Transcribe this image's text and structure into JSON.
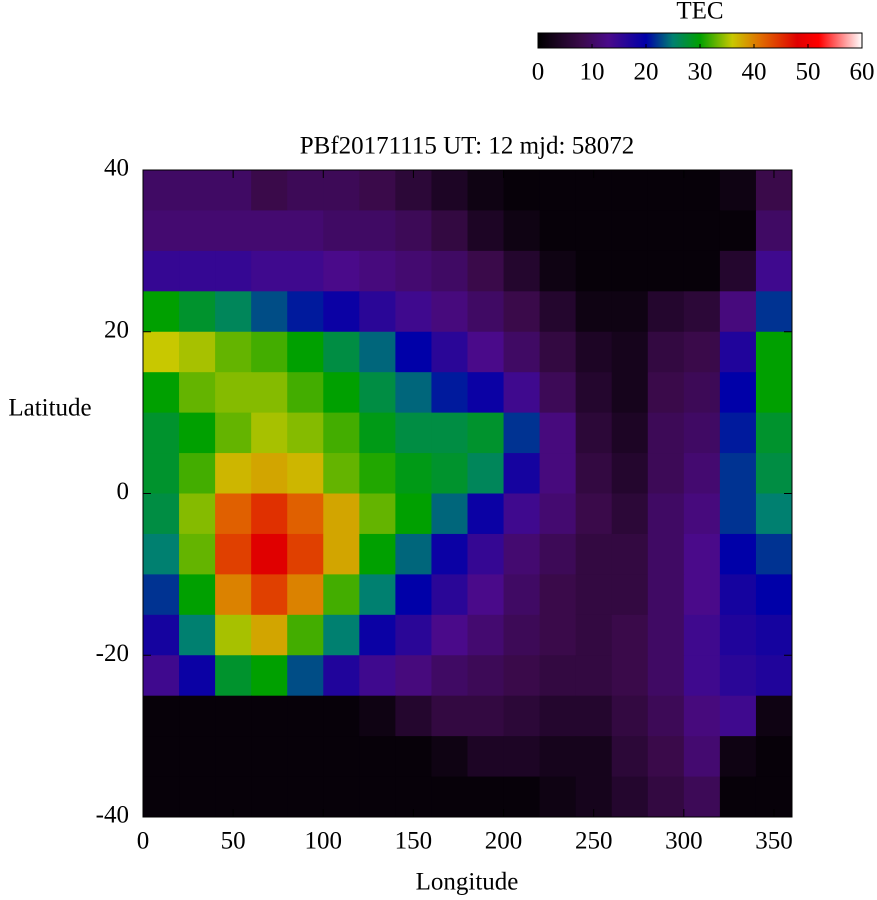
{
  "chart_data": {
    "type": "heatmap",
    "title": "PBf20171115  UT: 12  mjd: 58072",
    "xlabel": "Longitude",
    "ylabel": "Latitude",
    "colorbar_label": "TEC",
    "xlim": [
      0,
      360
    ],
    "xticks": [
      0,
      50,
      100,
      150,
      200,
      250,
      300,
      350
    ],
    "ylim": [
      -40,
      40
    ],
    "yticks": [
      -40,
      -20,
      0,
      20,
      40
    ],
    "clim": [
      0,
      60
    ],
    "cticks": [
      0,
      10,
      20,
      30,
      40,
      50,
      60
    ],
    "colormap": [
      {
        "value": 0,
        "color": "#000000"
      },
      {
        "value": 8,
        "color": "#3a0a4a"
      },
      {
        "value": 13,
        "color": "#4a0a8a"
      },
      {
        "value": 20,
        "color": "#0000a8"
      },
      {
        "value": 25,
        "color": "#008070"
      },
      {
        "value": 30,
        "color": "#00a000"
      },
      {
        "value": 36,
        "color": "#c8c800"
      },
      {
        "value": 41,
        "color": "#e07000"
      },
      {
        "value": 48,
        "color": "#e00000"
      },
      {
        "value": 52,
        "color": "#ff0000"
      },
      {
        "value": 60,
        "color": "#ffffff"
      }
    ],
    "x": [
      10,
      30,
      50,
      70,
      90,
      110,
      130,
      150,
      170,
      190,
      210,
      230,
      250,
      270,
      290,
      310,
      330,
      350
    ],
    "y": [
      37.5,
      32.5,
      27.5,
      22.5,
      17.5,
      12.5,
      7.5,
      2.5,
      -2.5,
      -7.5,
      -12.5,
      -17.5,
      -22.5,
      -27.5,
      -32.5,
      -37.5
    ],
    "z": [
      [
        10,
        10,
        10,
        8,
        9,
        9,
        8,
        6,
        4,
        2,
        1,
        1,
        1,
        1,
        1,
        1,
        2,
        8
      ],
      [
        11,
        11,
        11,
        11,
        11,
        10,
        10,
        9,
        7,
        4,
        2,
        1,
        1,
        1,
        1,
        1,
        1,
        10
      ],
      [
        15,
        15,
        15,
        14,
        14,
        13,
        12,
        11,
        10,
        8,
        5,
        2,
        1,
        1,
        1,
        1,
        5,
        14
      ],
      [
        30,
        28,
        26,
        23,
        21,
        19,
        16,
        14,
        12,
        10,
        8,
        5,
        2,
        2,
        5,
        6,
        12,
        22
      ],
      [
        36,
        35,
        33,
        32,
        30,
        27,
        24,
        20,
        16,
        13,
        10,
        7,
        4,
        3,
        7,
        8,
        17,
        30
      ],
      [
        30,
        33,
        34,
        34,
        32,
        30,
        27,
        24,
        21,
        19,
        14,
        9,
        5,
        3,
        8,
        9,
        20,
        30
      ],
      [
        28,
        30,
        33,
        35,
        34,
        32,
        29,
        27,
        27,
        28,
        22,
        12,
        6,
        4,
        9,
        10,
        21,
        28
      ],
      [
        28,
        32,
        37,
        38,
        37,
        33,
        31,
        29,
        28,
        26,
        18,
        12,
        7,
        5,
        9,
        11,
        22,
        27
      ],
      [
        27,
        34,
        42,
        45,
        42,
        38,
        33,
        30,
        24,
        19,
        14,
        11,
        8,
        6,
        10,
        12,
        22,
        25
      ],
      [
        25,
        33,
        44,
        48,
        44,
        38,
        30,
        24,
        19,
        15,
        11,
        9,
        7,
        7,
        10,
        13,
        20,
        22
      ],
      [
        22,
        30,
        40,
        44,
        40,
        32,
        25,
        20,
        16,
        13,
        10,
        8,
        7,
        7,
        10,
        13,
        18,
        20
      ],
      [
        18,
        25,
        35,
        38,
        32,
        25,
        19,
        16,
        13,
        11,
        9,
        8,
        7,
        8,
        10,
        14,
        17,
        18
      ],
      [
        14,
        19,
        28,
        30,
        23,
        17,
        14,
        12,
        10,
        9,
        8,
        7,
        7,
        8,
        10,
        14,
        16,
        17
      ],
      [
        1,
        1,
        1,
        1,
        1,
        1,
        2,
        5,
        7,
        7,
        6,
        5,
        5,
        7,
        9,
        12,
        14,
        2
      ],
      [
        1,
        1,
        1,
        1,
        1,
        1,
        1,
        1,
        2,
        4,
        4,
        3,
        3,
        6,
        8,
        11,
        2,
        1
      ],
      [
        1,
        1,
        1,
        1,
        1,
        1,
        1,
        1,
        1,
        1,
        1,
        2,
        3,
        5,
        7,
        9,
        1,
        1
      ]
    ]
  }
}
